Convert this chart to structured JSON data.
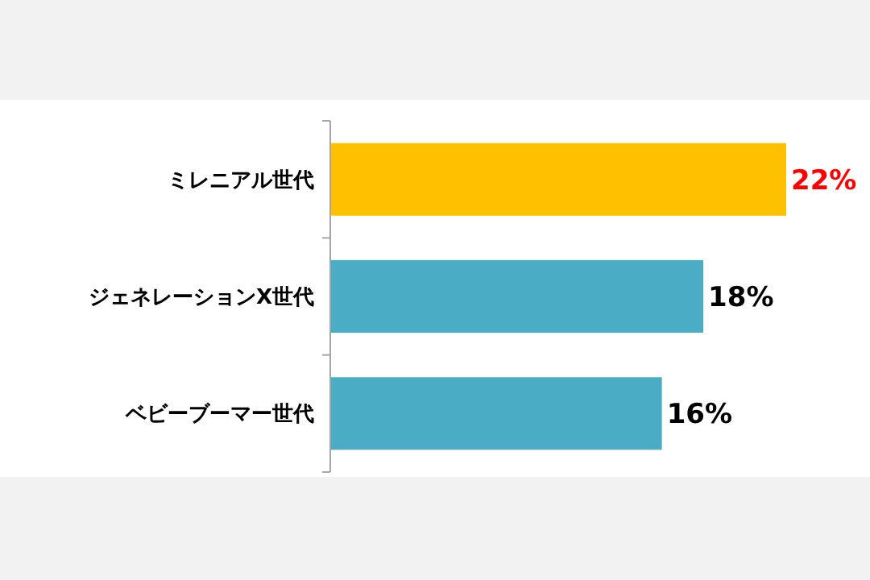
{
  "chart_data": {
    "type": "bar",
    "orientation": "horizontal",
    "categories": [
      "ミレニアル世代",
      "ジェネレーションX世代",
      "ベビーブーマー世代"
    ],
    "values": [
      22,
      18,
      16
    ],
    "value_labels": [
      "22%",
      "18%",
      "16%"
    ],
    "colors": [
      "#ffc000",
      "#4bacc6",
      "#4bacc6"
    ]
  }
}
